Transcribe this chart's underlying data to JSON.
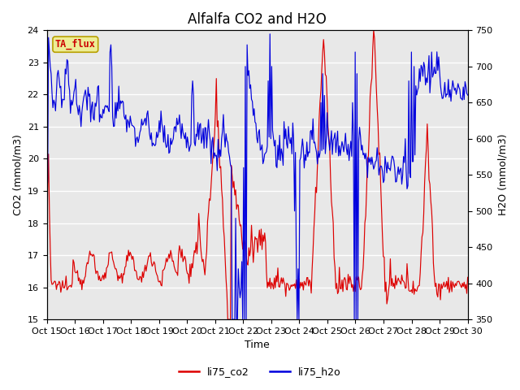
{
  "title": "Alfalfa CO2 and H2O",
  "xlabel": "Time",
  "ylabel_left": "CO2 (mmol/m3)",
  "ylabel_right": "H2O (mmol/m3)",
  "ylim_left": [
    15.0,
    24.0
  ],
  "ylim_right": [
    350,
    750
  ],
  "xtick_labels": [
    "Oct 15",
    "Oct 16",
    "Oct 17",
    "Oct 18",
    "Oct 19",
    "Oct 20",
    "Oct 21",
    "Oct 22",
    "Oct 23",
    "Oct 24",
    "Oct 25",
    "Oct 26",
    "Oct 27",
    "Oct 28",
    "Oct 29",
    "Oct 30"
  ],
  "annotation_text": "TA_flux",
  "annotation_bg": "#eded96",
  "annotation_border": "#b8a000",
  "line_co2_color": "#dd0000",
  "line_h2o_color": "#0000dd",
  "legend_co2": "li75_co2",
  "legend_h2o": "li75_h2o",
  "background_color": "#ffffff",
  "plot_bg_color": "#e8e8e8",
  "grid_color": "#ffffff",
  "title_fontsize": 12,
  "axis_label_fontsize": 9,
  "tick_fontsize": 8,
  "legend_fontsize": 9
}
